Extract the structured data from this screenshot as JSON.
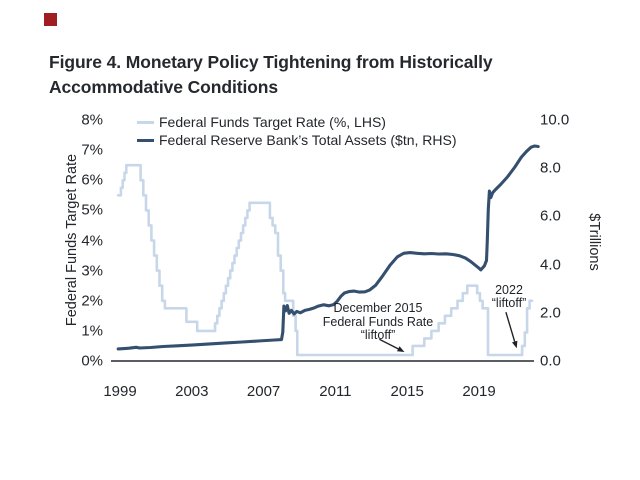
{
  "decorations": {
    "red_square_color": "#a01e22"
  },
  "title": {
    "line1": "Figure 4. Monetary Policy Tightening from Historically",
    "line2": "Accommodative Conditions"
  },
  "chart_data": {
    "type": "line",
    "title": "Figure 4. Monetary Policy Tightening from Historically Accommodative Conditions",
    "y_left_label": "Federal Funds Target Rate",
    "y_right_label": "$Trillions",
    "y_left_range": [
      0,
      8
    ],
    "y_right_range": [
      0,
      10
    ],
    "x_range": [
      1998.9,
      2022.35
    ],
    "grid": false,
    "legend_position": "top-left-inside",
    "lhs_ticks": [
      [
        8,
        "8%"
      ],
      [
        7,
        "7%"
      ],
      [
        6,
        "6%"
      ],
      [
        5,
        "5%"
      ],
      [
        4,
        "4%"
      ],
      [
        3,
        "3%"
      ],
      [
        2,
        "2%"
      ],
      [
        1,
        "1%"
      ],
      [
        0,
        "0%"
      ]
    ],
    "rhs_ticks": [
      [
        10,
        "10.0"
      ],
      [
        8,
        "8.0"
      ],
      [
        6,
        "6.0"
      ],
      [
        4,
        "4.0"
      ],
      [
        2,
        "2.0"
      ],
      [
        0,
        "0.0"
      ]
    ],
    "x_ticks": [
      [
        1999,
        "1999"
      ],
      [
        2003,
        "2003"
      ],
      [
        2007,
        "2007"
      ],
      [
        2011,
        "2011"
      ],
      [
        2015,
        "2015"
      ],
      [
        2019,
        "2019"
      ]
    ],
    "colors": {
      "axis": "#43464b",
      "text": "#1f2227"
    },
    "legend": [
      {
        "label": "Federal Funds Target Rate (%, LHS)"
      },
      {
        "label": "Federal Reserve Bank’s Total Assets ($tn, RHS)"
      }
    ],
    "series": [
      {
        "name": "Federal Funds Target Rate (%, LHS)",
        "axis": "left",
        "style": "step",
        "color": "#c7d7e9",
        "end_year": 2021.95,
        "data": [
          [
            1998.9,
            5.5
          ],
          [
            1999.05,
            5.75
          ],
          [
            1999.15,
            6.0
          ],
          [
            1999.25,
            6.25
          ],
          [
            1999.35,
            6.5
          ],
          [
            2000.15,
            6.0
          ],
          [
            2000.3,
            5.5
          ],
          [
            2000.45,
            5.0
          ],
          [
            2000.6,
            4.5
          ],
          [
            2000.75,
            4.0
          ],
          [
            2000.9,
            3.5
          ],
          [
            2001.05,
            3.0
          ],
          [
            2001.2,
            2.5
          ],
          [
            2001.35,
            2.0
          ],
          [
            2001.5,
            1.75
          ],
          [
            2002.7,
            1.3
          ],
          [
            2003.3,
            1.0
          ],
          [
            2004.3,
            1.25
          ],
          [
            2004.42,
            1.5
          ],
          [
            2004.54,
            1.75
          ],
          [
            2004.66,
            2.0
          ],
          [
            2004.78,
            2.25
          ],
          [
            2004.9,
            2.5
          ],
          [
            2005.02,
            2.75
          ],
          [
            2005.14,
            3.0
          ],
          [
            2005.26,
            3.25
          ],
          [
            2005.38,
            3.5
          ],
          [
            2005.5,
            3.75
          ],
          [
            2005.62,
            4.0
          ],
          [
            2005.74,
            4.25
          ],
          [
            2005.86,
            4.5
          ],
          [
            2005.98,
            4.75
          ],
          [
            2006.1,
            5.0
          ],
          [
            2006.22,
            5.25
          ],
          [
            2007.35,
            4.75
          ],
          [
            2007.5,
            4.5
          ],
          [
            2007.65,
            4.25
          ],
          [
            2007.8,
            3.5
          ],
          [
            2007.95,
            3.0
          ],
          [
            2008.1,
            2.25
          ],
          [
            2008.2,
            2.0
          ],
          [
            2008.65,
            1.5
          ],
          [
            2008.78,
            1.0
          ],
          [
            2008.88,
            0.2
          ],
          [
            2015.3,
            0.5
          ],
          [
            2015.95,
            0.75
          ],
          [
            2016.35,
            1.0
          ],
          [
            2016.75,
            1.25
          ],
          [
            2017.1,
            1.5
          ],
          [
            2017.45,
            1.75
          ],
          [
            2017.8,
            2.0
          ],
          [
            2018.1,
            2.25
          ],
          [
            2018.35,
            2.5
          ],
          [
            2018.9,
            2.25
          ],
          [
            2019.05,
            2.0
          ],
          [
            2019.2,
            1.75
          ],
          [
            2019.5,
            0.2
          ],
          [
            2021.4,
            0.5
          ],
          [
            2021.55,
            0.95
          ],
          [
            2021.68,
            1.75
          ],
          [
            2021.82,
            2.0
          ]
        ]
      },
      {
        "name": "Federal Reserve Bank’s Total Assets ($tn, RHS)",
        "axis": "right",
        "style": "line",
        "color": "#35506e",
        "data": [
          [
            1998.9,
            0.5
          ],
          [
            1999.5,
            0.53
          ],
          [
            1999.9,
            0.57
          ],
          [
            2000.1,
            0.54
          ],
          [
            2000.7,
            0.56
          ],
          [
            2001.4,
            0.6
          ],
          [
            2002.2,
            0.63
          ],
          [
            2003.1,
            0.67
          ],
          [
            2004.0,
            0.71
          ],
          [
            2004.9,
            0.75
          ],
          [
            2005.8,
            0.79
          ],
          [
            2006.7,
            0.83
          ],
          [
            2007.6,
            0.87
          ],
          [
            2008.0,
            0.89
          ],
          [
            2008.07,
            1.2
          ],
          [
            2008.13,
            2.28
          ],
          [
            2008.22,
            2.08
          ],
          [
            2008.32,
            2.3
          ],
          [
            2008.42,
            1.98
          ],
          [
            2008.55,
            2.1
          ],
          [
            2008.7,
            1.95
          ],
          [
            2008.85,
            2.06
          ],
          [
            2009.05,
            2.0
          ],
          [
            2009.3,
            2.1
          ],
          [
            2009.55,
            2.14
          ],
          [
            2009.8,
            2.2
          ],
          [
            2010.05,
            2.28
          ],
          [
            2010.35,
            2.33
          ],
          [
            2010.65,
            2.29
          ],
          [
            2010.9,
            2.34
          ],
          [
            2011.1,
            2.48
          ],
          [
            2011.3,
            2.68
          ],
          [
            2011.5,
            2.82
          ],
          [
            2011.75,
            2.88
          ],
          [
            2012.05,
            2.9
          ],
          [
            2012.35,
            2.86
          ],
          [
            2012.65,
            2.87
          ],
          [
            2012.9,
            2.94
          ],
          [
            2013.25,
            3.15
          ],
          [
            2013.65,
            3.55
          ],
          [
            2014.05,
            3.98
          ],
          [
            2014.45,
            4.32
          ],
          [
            2014.8,
            4.47
          ],
          [
            2015.15,
            4.5
          ],
          [
            2015.55,
            4.47
          ],
          [
            2015.95,
            4.45
          ],
          [
            2016.35,
            4.46
          ],
          [
            2016.75,
            4.44
          ],
          [
            2017.15,
            4.45
          ],
          [
            2017.55,
            4.42
          ],
          [
            2017.9,
            4.37
          ],
          [
            2018.25,
            4.27
          ],
          [
            2018.55,
            4.12
          ],
          [
            2018.8,
            3.97
          ],
          [
            2019.0,
            3.85
          ],
          [
            2019.1,
            3.78
          ],
          [
            2019.3,
            3.95
          ],
          [
            2019.42,
            4.17
          ],
          [
            2019.46,
            5.0
          ],
          [
            2019.52,
            6.3
          ],
          [
            2019.58,
            7.05
          ],
          [
            2019.66,
            6.78
          ],
          [
            2019.76,
            6.98
          ],
          [
            2019.9,
            7.1
          ],
          [
            2020.2,
            7.32
          ],
          [
            2020.6,
            7.65
          ],
          [
            2021.0,
            8.05
          ],
          [
            2021.35,
            8.45
          ],
          [
            2021.65,
            8.7
          ],
          [
            2021.9,
            8.87
          ],
          [
            2022.1,
            8.92
          ],
          [
            2022.3,
            8.9
          ]
        ]
      }
    ],
    "annotations": [
      {
        "lines": [
          "December 2015",
          "Federal Funds Rate",
          "“liftoff”"
        ],
        "arrow": {
          "from": [
            2013.45,
            0.72
          ],
          "to": [
            2014.85,
            0.3
          ]
        }
      },
      {
        "lines": [
          "2022",
          "“liftoff”"
        ],
        "arrow": {
          "from": [
            2020.5,
            1.62
          ],
          "to": [
            2021.1,
            0.42
          ]
        }
      }
    ]
  }
}
